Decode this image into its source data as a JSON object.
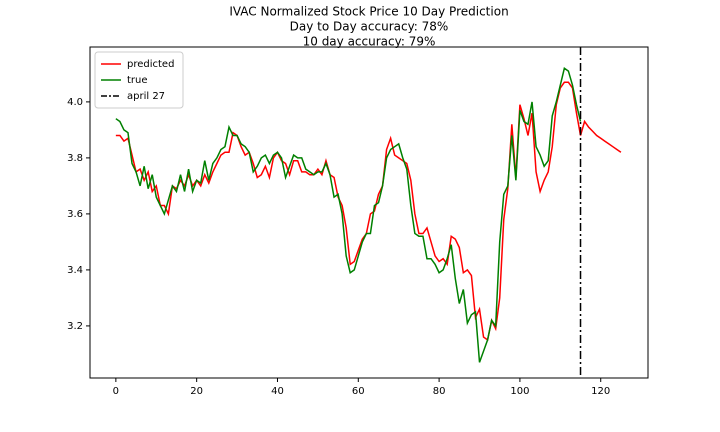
{
  "chart_data": {
    "type": "line",
    "title": "IVAC Normalized Stock Price 10 Day Prediction",
    "subtitle": [
      "Day to Day accuracy: 78%",
      "10 day accuracy: 79%"
    ],
    "x": [
      0,
      1,
      2,
      3,
      4,
      5,
      6,
      7,
      8,
      9,
      10,
      11,
      12,
      13,
      14,
      15,
      16,
      17,
      18,
      19,
      20,
      21,
      22,
      23,
      24,
      25,
      26,
      27,
      28,
      29,
      30,
      31,
      32,
      33,
      34,
      35,
      36,
      37,
      38,
      39,
      40,
      41,
      42,
      43,
      44,
      45,
      46,
      47,
      48,
      49,
      50,
      51,
      52,
      53,
      54,
      55,
      56,
      57,
      58,
      59,
      60,
      61,
      62,
      63,
      64,
      65,
      66,
      67,
      68,
      69,
      70,
      71,
      72,
      73,
      74,
      75,
      76,
      77,
      78,
      79,
      80,
      81,
      82,
      83,
      84,
      85,
      86,
      87,
      88,
      89,
      90,
      91,
      92,
      93,
      94,
      95,
      96,
      97,
      98,
      99,
      100,
      101,
      102,
      103,
      104,
      105,
      106,
      107,
      108,
      109,
      110,
      111,
      112,
      113,
      114,
      115,
      116,
      117,
      118,
      119,
      120,
      121,
      122,
      123,
      124,
      125
    ],
    "series": [
      {
        "name": "predicted",
        "color": "#ff0000",
        "values": [
          3.88,
          3.88,
          3.86,
          3.87,
          3.81,
          3.75,
          3.76,
          3.72,
          3.75,
          3.68,
          3.7,
          3.63,
          3.63,
          3.6,
          3.7,
          3.69,
          3.72,
          3.7,
          3.74,
          3.7,
          3.72,
          3.7,
          3.74,
          3.71,
          3.75,
          3.78,
          3.81,
          3.82,
          3.82,
          3.89,
          3.88,
          3.84,
          3.81,
          3.82,
          3.78,
          3.73,
          3.74,
          3.77,
          3.73,
          3.8,
          3.82,
          3.79,
          3.78,
          3.74,
          3.79,
          3.79,
          3.75,
          3.75,
          3.74,
          3.74,
          3.76,
          3.74,
          3.79,
          3.74,
          3.73,
          3.66,
          3.63,
          3.55,
          3.42,
          3.43,
          3.47,
          3.51,
          3.53,
          3.6,
          3.61,
          3.67,
          3.7,
          3.83,
          3.87,
          3.81,
          3.8,
          3.79,
          3.78,
          3.72,
          3.6,
          3.53,
          3.53,
          3.55,
          3.5,
          3.45,
          3.43,
          3.44,
          3.42,
          3.52,
          3.51,
          3.48,
          3.39,
          3.4,
          3.38,
          3.23,
          3.26,
          3.16,
          3.15,
          3.22,
          3.19,
          3.3,
          3.58,
          3.69,
          3.92,
          3.73,
          3.99,
          3.94,
          3.88,
          3.96,
          3.75,
          3.68,
          3.72,
          3.75,
          3.84,
          3.99,
          4.05,
          4.07,
          4.07,
          4.05,
          3.96,
          3.88,
          3.93,
          3.91,
          3.895,
          3.88,
          3.87,
          3.86,
          3.85,
          3.84,
          3.83,
          3.82
        ]
      },
      {
        "name": "true",
        "color": "#008000",
        "values": [
          3.94,
          3.93,
          3.9,
          3.89,
          3.78,
          3.75,
          3.7,
          3.77,
          3.69,
          3.74,
          3.66,
          3.63,
          3.6,
          3.65,
          3.7,
          3.68,
          3.74,
          3.68,
          3.76,
          3.68,
          3.72,
          3.71,
          3.79,
          3.72,
          3.78,
          3.8,
          3.83,
          3.84,
          3.91,
          3.88,
          3.88,
          3.85,
          3.84,
          3.82,
          3.75,
          3.77,
          3.8,
          3.81,
          3.78,
          3.81,
          3.82,
          3.8,
          3.73,
          3.77,
          3.81,
          3.8,
          3.8,
          3.76,
          3.75,
          3.74,
          3.75,
          3.75,
          3.78,
          3.74,
          3.66,
          3.67,
          3.6,
          3.45,
          3.39,
          3.4,
          3.45,
          3.5,
          3.53,
          3.53,
          3.63,
          3.64,
          3.7,
          3.8,
          3.83,
          3.84,
          3.85,
          3.8,
          3.76,
          3.63,
          3.53,
          3.52,
          3.52,
          3.44,
          3.44,
          3.42,
          3.39,
          3.4,
          3.44,
          3.49,
          3.37,
          3.28,
          3.33,
          3.21,
          3.24,
          3.25,
          3.07,
          3.11,
          3.15,
          3.22,
          3.2,
          3.5,
          3.67,
          3.7,
          3.88,
          3.72,
          3.97,
          3.93,
          3.92,
          4.0,
          3.84,
          3.81,
          3.77,
          3.79,
          3.95,
          4.0,
          4.06,
          4.12,
          4.11,
          4.06,
          3.99,
          3.93,
          null,
          null,
          null,
          null,
          null,
          null,
          null,
          null,
          null,
          null
        ]
      }
    ],
    "vline": {
      "name": "april 27",
      "x": 115,
      "color": "#000000"
    },
    "xlim": [
      -6.4,
      131.7
    ],
    "ylim": [
      3.014,
      4.196
    ],
    "xticks": [
      0,
      20,
      40,
      60,
      80,
      100,
      120
    ],
    "yticks": [
      3.2,
      3.4,
      3.6,
      3.8,
      {
        "value": 4,
        "label": "4.0"
      }
    ],
    "legend": "upper left"
  }
}
